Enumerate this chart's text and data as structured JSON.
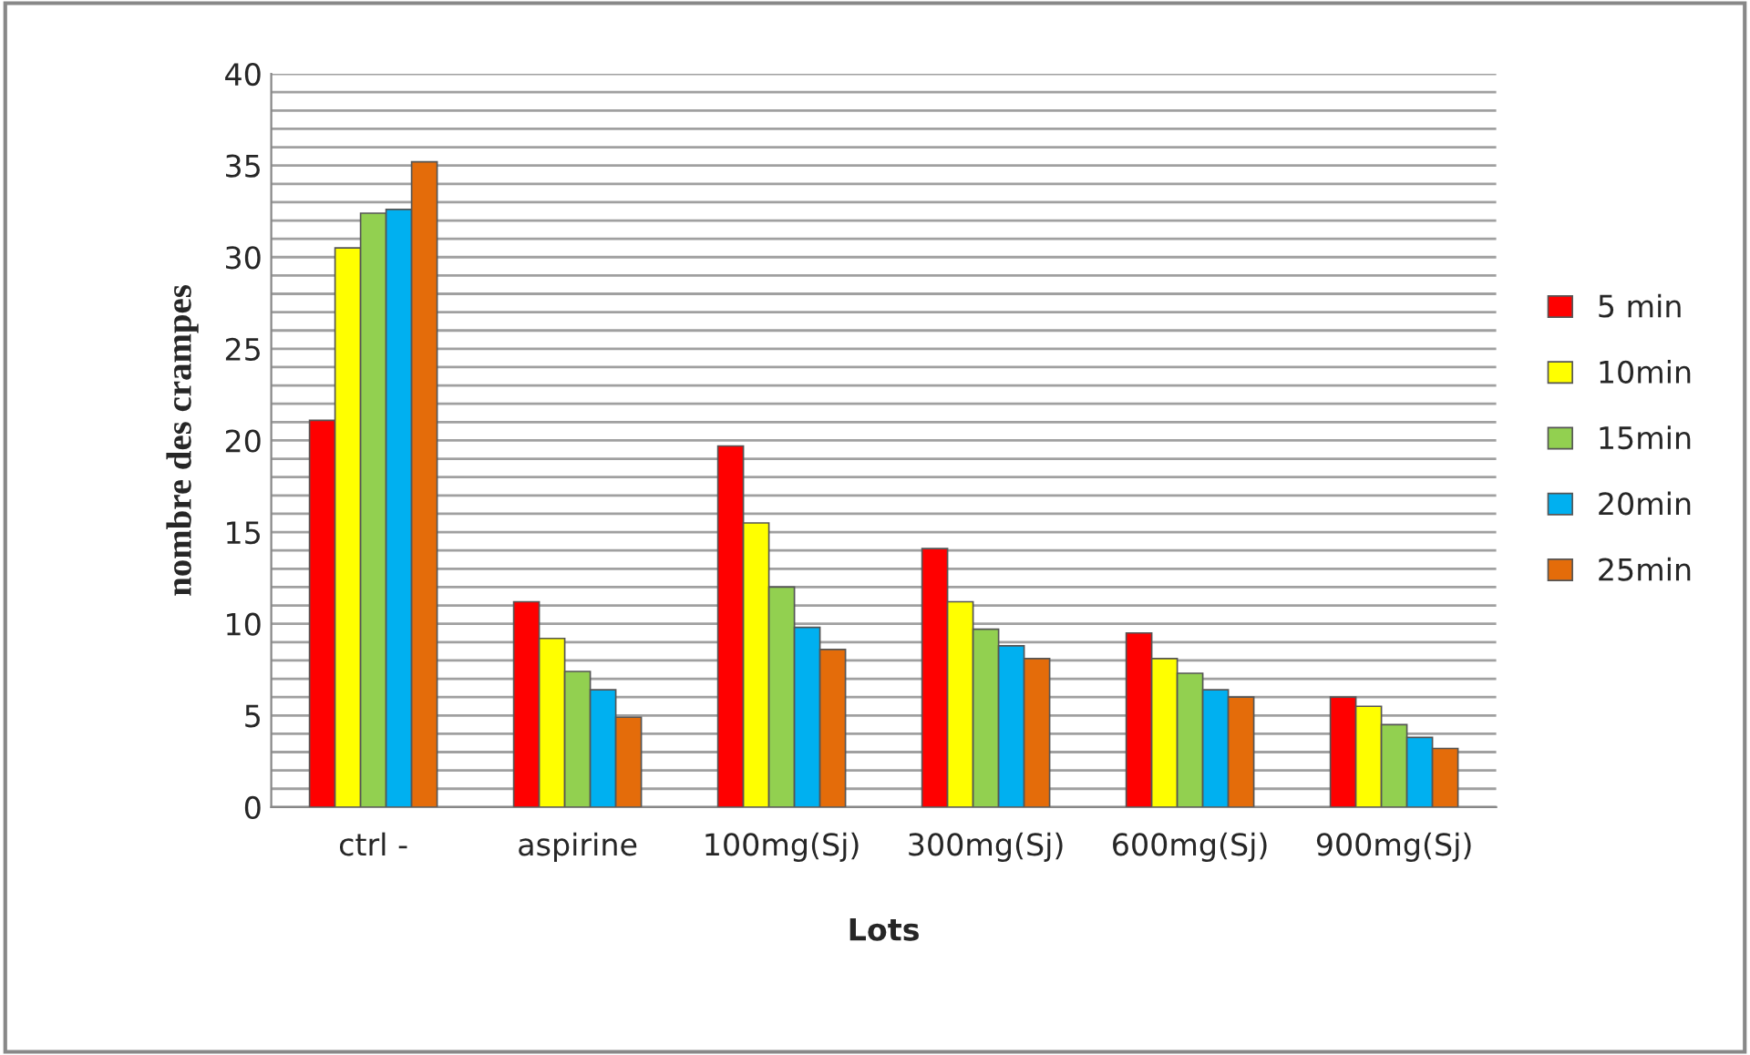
{
  "chart_data": {
    "type": "bar",
    "xlabel": "Lots",
    "ylabel": "nombre des crampes",
    "categories": [
      "ctrl -",
      "aspirine",
      "100mg(Sj)",
      "300mg(Sj)",
      "600mg(Sj)",
      "900mg(Sj)"
    ],
    "series": [
      {
        "name": "5 min",
        "color": "#ff0000",
        "values": [
          21.1,
          11.2,
          19.7,
          14.1,
          9.5,
          6.0
        ]
      },
      {
        "name": "10min",
        "color": "#ffff00",
        "values": [
          30.5,
          9.2,
          15.5,
          11.2,
          8.1,
          5.5
        ]
      },
      {
        "name": "15min",
        "color": "#92d050",
        "values": [
          32.4,
          7.4,
          12.0,
          9.7,
          7.3,
          4.5
        ]
      },
      {
        "name": "20min",
        "color": "#00b0f0",
        "values": [
          32.6,
          6.4,
          9.8,
          8.8,
          6.4,
          3.8
        ]
      },
      {
        "name": "25min",
        "color": "#e46c0a",
        "values": [
          35.2,
          4.9,
          8.6,
          8.1,
          6.0,
          3.2
        ]
      }
    ],
    "ylim": [
      0,
      40
    ],
    "yticks": [
      0,
      {
        "value": 1,
        "label": null
      },
      {
        "value": 2,
        "label": null
      },
      {
        "value": 3,
        "label": null
      },
      {
        "value": 4,
        "label": null
      },
      5,
      {
        "value": 6,
        "label": null
      },
      {
        "value": 7,
        "label": null
      },
      {
        "value": 8,
        "label": null
      },
      {
        "value": 9,
        "label": null
      },
      10,
      {
        "value": 11,
        "label": null
      },
      {
        "value": 12,
        "label": null
      },
      {
        "value": 13,
        "label": null
      },
      {
        "value": 14,
        "label": null
      },
      15,
      {
        "value": 16,
        "label": null
      },
      {
        "value": 17,
        "label": null
      },
      {
        "value": 18,
        "label": null
      },
      {
        "value": 19,
        "label": null
      },
      20,
      {
        "value": 21,
        "label": null
      },
      {
        "value": 22,
        "label": null
      },
      {
        "value": 23,
        "label": null
      },
      {
        "value": 24,
        "label": null
      },
      25,
      {
        "value": 26,
        "label": null
      },
      {
        "value": 27,
        "label": null
      },
      {
        "value": 28,
        "label": null
      },
      {
        "value": 29,
        "label": null
      },
      30,
      {
        "value": 31,
        "label": null
      },
      {
        "value": 32,
        "label": null
      },
      {
        "value": 33,
        "label": null
      },
      {
        "value": 34,
        "label": null
      },
      35,
      {
        "value": 36,
        "label": null
      },
      {
        "value": 37,
        "label": null
      },
      {
        "value": 38,
        "label": null
      },
      {
        "value": 39,
        "label": null
      },
      40
    ],
    "grid": "y",
    "legend": "right"
  }
}
